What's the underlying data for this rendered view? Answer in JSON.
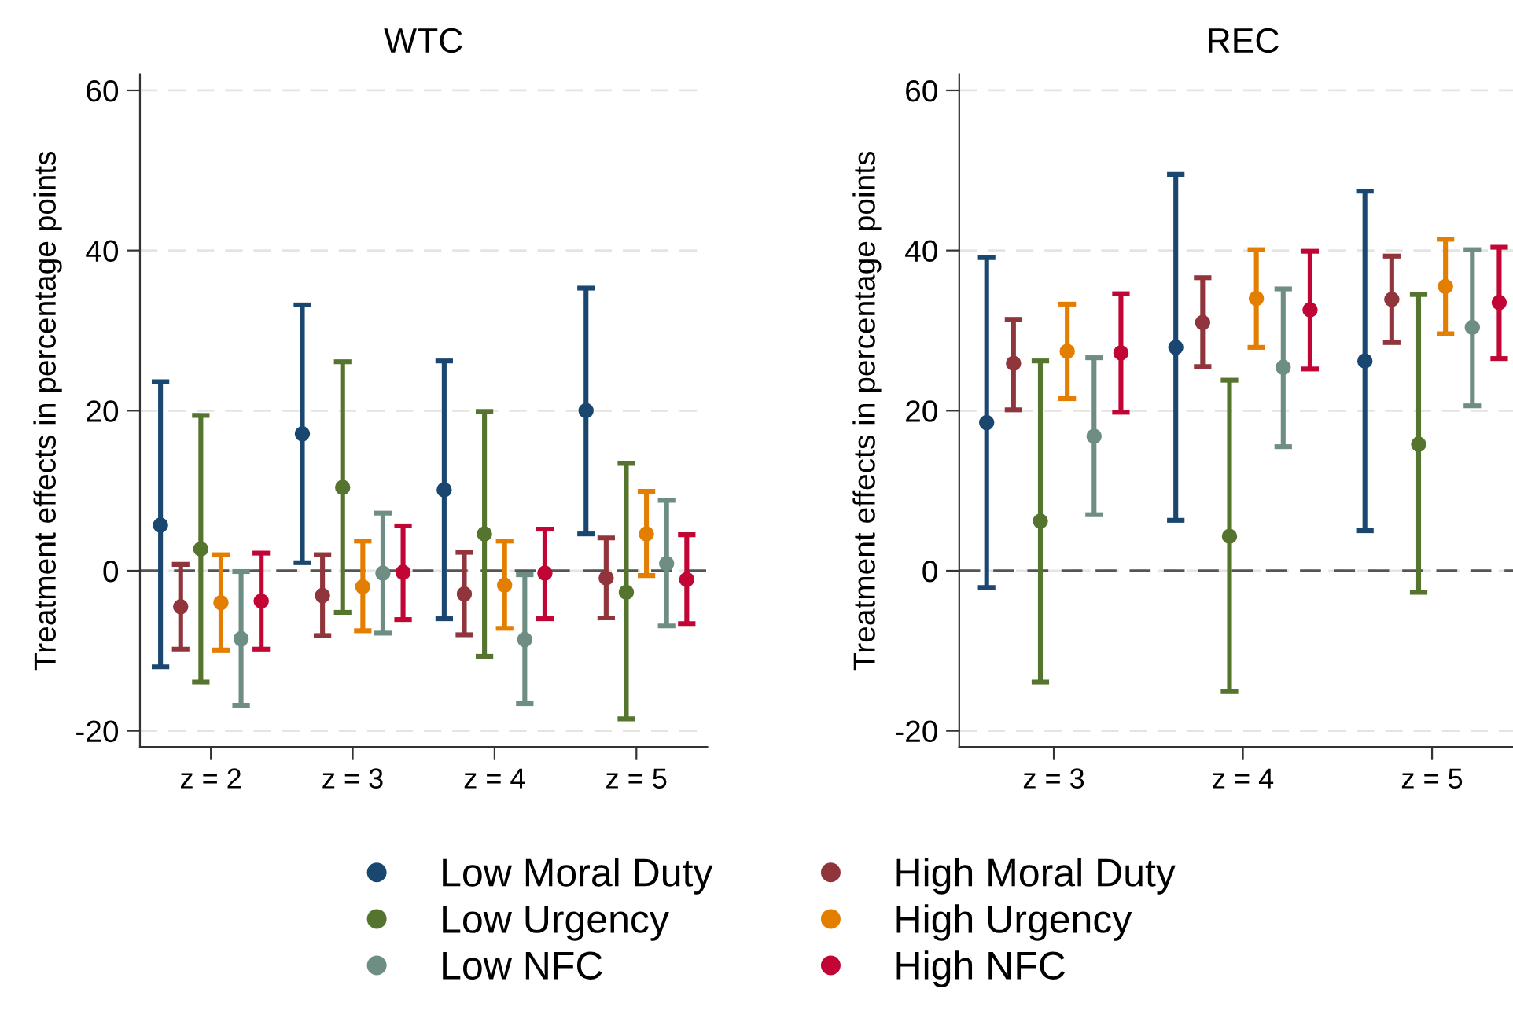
{
  "chart_data": [
    {
      "type": "scatter",
      "title": "WTC",
      "ylabel": "Treatment effects in percentage points",
      "categories": [
        "z = 2",
        "z = 3",
        "z = 4",
        "z = 5"
      ],
      "ylim": [
        -22,
        62
      ],
      "yticks": [
        -20,
        0,
        20,
        40,
        60
      ],
      "grid": "y",
      "legend": "bottom",
      "marker": "circle",
      "ref_lines": [
        {
          "axis": "y",
          "value": 0,
          "color": "#555555",
          "line_style": "dashed"
        }
      ],
      "series": [
        {
          "name": "Low Moral Duty",
          "color": "#1a476f",
          "values": [
            5.7,
            17.1,
            10.1,
            20.0
          ],
          "errors": [
            [
              -12.0,
              23.6
            ],
            [
              1.0,
              33.2
            ],
            [
              -6.0,
              26.2
            ],
            [
              4.6,
              35.3
            ]
          ]
        },
        {
          "name": "High Moral Duty",
          "color": "#90353b",
          "values": [
            -4.5,
            -3.1,
            -2.9,
            -0.9
          ],
          "errors": [
            [
              -9.8,
              0.8
            ],
            [
              -8.1,
              2.0
            ],
            [
              -8.0,
              2.3
            ],
            [
              -5.9,
              4.1
            ]
          ]
        },
        {
          "name": "Low Urgency",
          "color": "#55752f",
          "values": [
            2.7,
            10.4,
            4.6,
            -2.7
          ],
          "errors": [
            [
              -13.9,
              19.4
            ],
            [
              -5.2,
              26.1
            ],
            [
              -10.7,
              19.9
            ],
            [
              -18.5,
              13.4
            ]
          ]
        },
        {
          "name": "High Urgency",
          "color": "#e37e00",
          "values": [
            -4.0,
            -2.0,
            -1.8,
            4.6
          ],
          "errors": [
            [
              -9.9,
              2.0
            ],
            [
              -7.5,
              3.7
            ],
            [
              -7.2,
              3.7
            ],
            [
              -0.6,
              9.9
            ]
          ]
        },
        {
          "name": "Low NFC",
          "color": "#6e8e84",
          "values": [
            -8.5,
            -0.3,
            -8.6,
            0.9
          ],
          "errors": [
            [
              -16.8,
              -0.1
            ],
            [
              -7.8,
              7.2
            ],
            [
              -16.6,
              -0.5
            ],
            [
              -6.9,
              8.8
            ]
          ]
        },
        {
          "name": "High NFC",
          "color": "#c10534",
          "values": [
            -3.8,
            -0.2,
            -0.3,
            -1.1
          ],
          "errors": [
            [
              -9.8,
              2.2
            ],
            [
              -6.1,
              5.6
            ],
            [
              -6.0,
              5.2
            ],
            [
              -6.6,
              4.5
            ]
          ]
        }
      ]
    },
    {
      "type": "scatter",
      "title": "REC",
      "ylabel": "Treatment effects in percentage points",
      "categories": [
        "z = 3",
        "z = 4",
        "z = 5"
      ],
      "ylim": [
        -22,
        62
      ],
      "yticks": [
        -20,
        0,
        20,
        40,
        60
      ],
      "grid": "y",
      "marker": "circle",
      "ref_lines": [
        {
          "axis": "y",
          "value": 0,
          "color": "#555555",
          "line_style": "dashed"
        }
      ],
      "series": [
        {
          "color": "#1a476f",
          "values": [
            18.5,
            27.9,
            26.2
          ],
          "errors": [
            [
              -2.1,
              39.1
            ],
            [
              6.3,
              49.5
            ],
            [
              5.0,
              47.4
            ]
          ]
        },
        {
          "color": "#90353b",
          "values": [
            25.9,
            31.0,
            33.9
          ],
          "errors": [
            [
              20.1,
              31.4
            ],
            [
              25.5,
              36.6
            ],
            [
              28.5,
              39.3
            ]
          ]
        },
        {
          "color": "#55752f",
          "values": [
            6.2,
            4.3,
            15.8
          ],
          "errors": [
            [
              -13.9,
              26.2
            ],
            [
              -15.1,
              23.8
            ],
            [
              -2.7,
              34.5
            ]
          ]
        },
        {
          "color": "#e37e00",
          "values": [
            27.4,
            34.0,
            35.5
          ],
          "errors": [
            [
              21.5,
              33.3
            ],
            [
              27.9,
              40.1
            ],
            [
              29.6,
              41.4
            ]
          ]
        },
        {
          "color": "#6e8e84",
          "values": [
            16.8,
            25.4,
            30.4
          ],
          "errors": [
            [
              7.0,
              26.6
            ],
            [
              15.5,
              35.2
            ],
            [
              20.6,
              40.1
            ]
          ]
        },
        {
          "color": "#c10534",
          "values": [
            27.2,
            32.6,
            33.5
          ],
          "errors": [
            [
              19.8,
              34.6
            ],
            [
              25.2,
              39.9
            ],
            [
              26.5,
              40.4
            ]
          ]
        }
      ]
    }
  ]
}
